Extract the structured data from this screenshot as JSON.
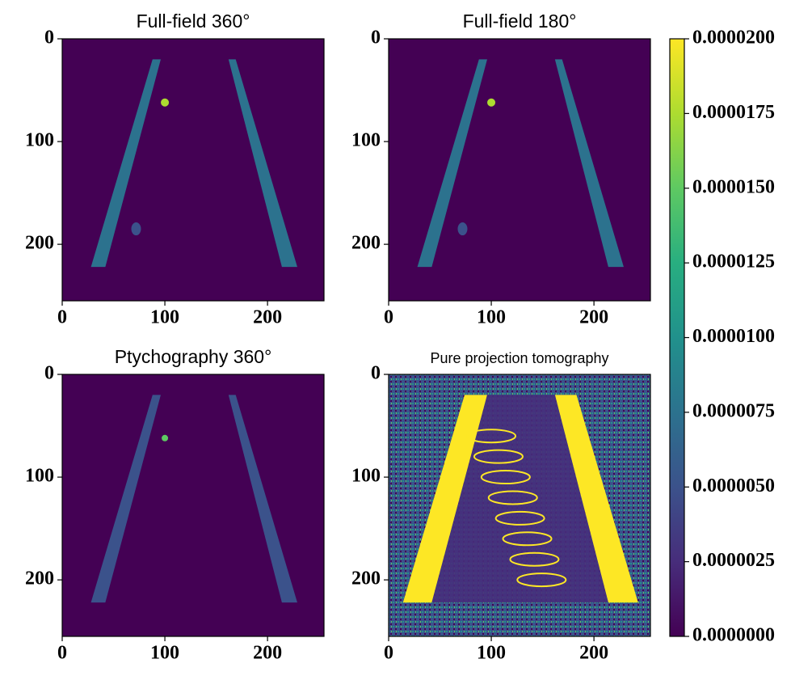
{
  "chart_data": [
    {
      "type": "image",
      "title": "Full-field 360°",
      "xlim": [
        0,
        255
      ],
      "ylim": [
        255,
        0
      ],
      "xticks": [
        0,
        100,
        200
      ],
      "yticks": [
        0,
        100,
        200
      ]
    },
    {
      "type": "image",
      "title": "Full-field 180°",
      "xlim": [
        0,
        255
      ],
      "ylim": [
        255,
        0
      ],
      "xticks": [
        0,
        100,
        200
      ],
      "yticks": [
        0,
        100,
        200
      ]
    },
    {
      "type": "image",
      "title": "Ptychography 360°",
      "xlim": [
        0,
        255
      ],
      "ylim": [
        255,
        0
      ],
      "xticks": [
        0,
        100,
        200
      ],
      "yticks": [
        0,
        100,
        200
      ]
    },
    {
      "type": "image",
      "title": "Pure projection tomography",
      "xlim": [
        0,
        255
      ],
      "ylim": [
        255,
        0
      ],
      "xticks": [
        0,
        100,
        200
      ],
      "yticks": [
        0,
        100,
        200
      ]
    },
    {
      "type": "colorbar",
      "colormap": "viridis",
      "ylim": [
        0,
        2e-05
      ],
      "yticks": [
        {
          "value": 0,
          "label": "0.0000000"
        },
        {
          "value": 2.5e-06,
          "label": "0.0000025"
        },
        {
          "value": 5e-06,
          "label": "0.0000050"
        },
        {
          "value": 7.5e-06,
          "label": "0.0000075"
        },
        {
          "value": 1e-05,
          "label": "0.0000100"
        },
        {
          "value": 1.25e-05,
          "label": "0.0000125"
        },
        {
          "value": 1.5e-05,
          "label": "0.0000150"
        },
        {
          "value": 1.75e-05,
          "label": "0.0000175"
        },
        {
          "value": 2e-05,
          "label": "0.0000200"
        }
      ]
    }
  ]
}
